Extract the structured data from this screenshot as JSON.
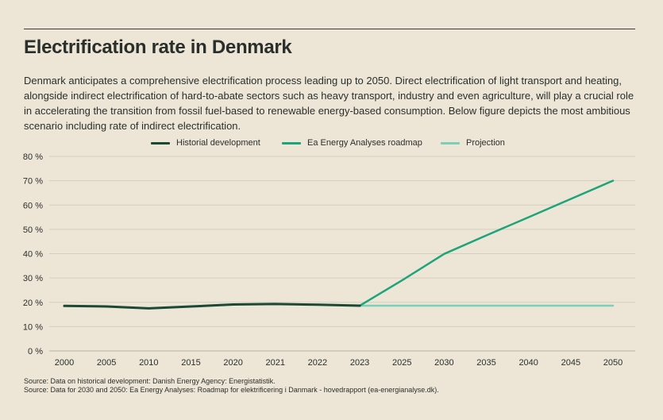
{
  "title": "Electrification rate in Denmark",
  "description": "Denmark anticipates a comprehensive electrification process leading up to 2050. Direct electrification of light transport and heating, alongside indirect electrification of hard-to-abate sectors such as heavy transport, industry and even agriculture, will play a crucial role in accelerating the transition from fossil fuel-based to renewable energy-based consumption. Below figure depicts the most ambitious scenario including rate of indirect electrification.",
  "sources": [
    "Source: Data on historical development: Danish Energy Agency: Energistatistik.",
    "Source: Data for 2030 and 2050: Ea Energy Analyses: Roadmap for elektrificering i Danmark - hovedrapport (ea-energianalyse.dk)."
  ],
  "chart_data": {
    "type": "line",
    "title": "",
    "xlabel": "",
    "ylabel": "",
    "categories": [
      "2000",
      "2005",
      "2010",
      "2015",
      "2020",
      "2021",
      "2022",
      "2023",
      "2025",
      "2030",
      "2035",
      "2040",
      "2045",
      "2050"
    ],
    "y_ticks": [
      "0 %",
      "10 %",
      "20 %",
      "30 %",
      "40 %",
      "50 %",
      "60 %",
      "70 %",
      "80 %"
    ],
    "ylim": [
      0,
      80
    ],
    "grid": true,
    "legend_position": "top-center",
    "series": [
      {
        "name": "Historial development",
        "color": "#1a4a34",
        "values": [
          18.5,
          18.3,
          17.5,
          18.3,
          19.1,
          19.3,
          19.0,
          18.6,
          null,
          null,
          null,
          null,
          null,
          null
        ]
      },
      {
        "name": "Ea Energy Analyses roadmap",
        "color": "#1ea47a",
        "values": [
          null,
          null,
          null,
          null,
          null,
          null,
          null,
          18.6,
          29.0,
          39.9,
          47.5,
          55.0,
          62.5,
          70.0
        ]
      },
      {
        "name": "Projection",
        "color": "#79d0b6",
        "values": [
          null,
          null,
          null,
          null,
          null,
          null,
          null,
          18.6,
          18.6,
          18.6,
          18.6,
          18.6,
          18.6,
          18.6
        ]
      }
    ]
  }
}
